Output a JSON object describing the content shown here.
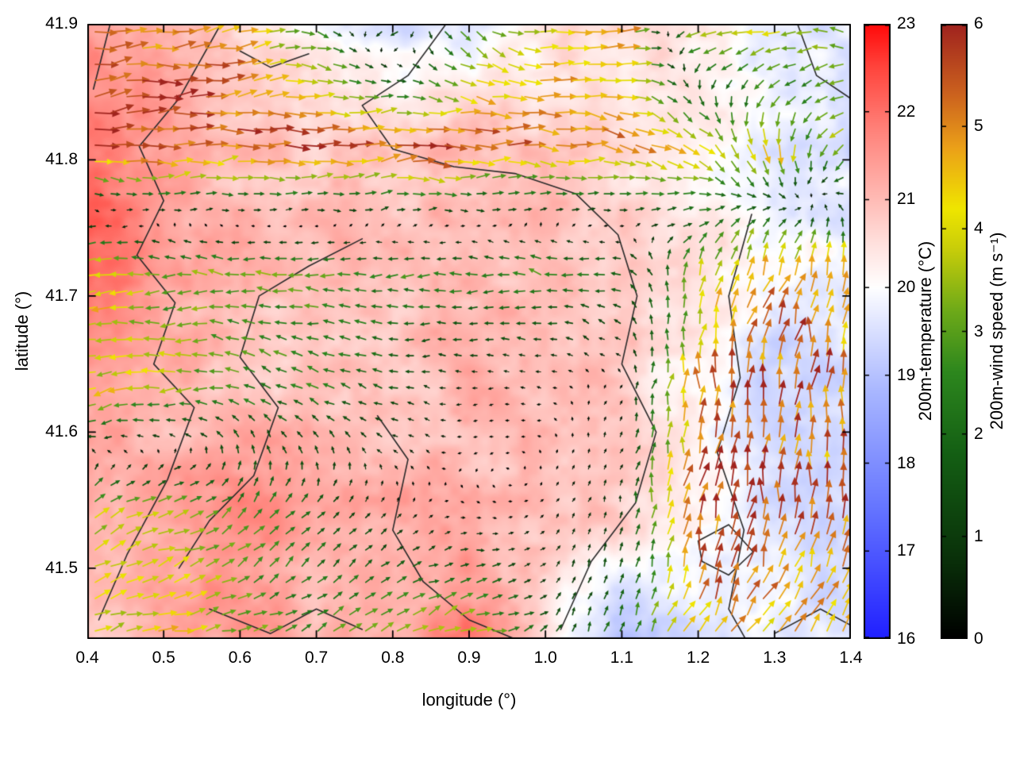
{
  "figure": {
    "background": "#ffffff",
    "text_color": "#000000"
  },
  "chart_data": {
    "type": "heatmap",
    "subtype": "temperature-field-with-wind-vectors",
    "title": "",
    "xlabel": "longitude (°)",
    "ylabel": "latitude (°)",
    "xlim": [
      0.4,
      1.4
    ],
    "ylim": [
      41.448,
      41.9
    ],
    "xticks": [
      "0.4",
      "0.5",
      "0.6",
      "0.7",
      "0.8",
      "0.9",
      "1.0",
      "1.1",
      "1.2",
      "1.3",
      "1.4"
    ],
    "yticks": [
      "41.5",
      "41.6",
      "41.7",
      "41.8",
      "41.9"
    ],
    "grid": false,
    "legend": "none",
    "contour_color": "#2a2a2a",
    "colorbars": [
      {
        "id": "temperature",
        "label": "200m-temperature (°C)",
        "min": 16,
        "max": 23,
        "ticks": [
          "16",
          "17",
          "18",
          "19",
          "20",
          "21",
          "22",
          "23"
        ],
        "stops": [
          [
            16.0,
            "#2020ff"
          ],
          [
            17.5,
            "#6676ff"
          ],
          [
            18.8,
            "#a8b6ff"
          ],
          [
            19.6,
            "#e1e6ff"
          ],
          [
            20.0,
            "#ffffff"
          ],
          [
            20.5,
            "#ffe1de"
          ],
          [
            21.0,
            "#ffbcb6"
          ],
          [
            21.8,
            "#ff827a"
          ],
          [
            22.5,
            "#ff463e"
          ],
          [
            23.0,
            "#ff0a0a"
          ]
        ]
      },
      {
        "id": "wind_speed",
        "label": "200m-wind speed (m s⁻¹)",
        "min": 0,
        "max": 6,
        "ticks": [
          "0",
          "1",
          "2",
          "3",
          "4",
          "5",
          "6"
        ],
        "stops": [
          [
            0.0,
            "#000000"
          ],
          [
            0.8,
            "#0a320a"
          ],
          [
            1.8,
            "#145f14"
          ],
          [
            2.6,
            "#2d871e"
          ],
          [
            3.2,
            "#6eaa19"
          ],
          [
            3.8,
            "#c8cd0a"
          ],
          [
            4.2,
            "#f0e600"
          ],
          [
            4.8,
            "#eba019"
          ],
          [
            5.3,
            "#cd641e"
          ],
          [
            6.0,
            "#a0231e"
          ]
        ]
      }
    ],
    "temperature_field": {
      "units": "degC",
      "x": [
        0.4,
        0.5,
        0.6,
        0.7,
        0.8,
        0.9,
        1.0,
        1.1,
        1.2,
        1.3,
        1.4
      ],
      "y": [
        41.9,
        41.81,
        41.72,
        41.63,
        41.54,
        41.45
      ],
      "values_c": [
        [
          21.5,
          21.0,
          20.5,
          20.0,
          19.5,
          19.6,
          20.3,
          20.6,
          20.3,
          19.8,
          19.6
        ],
        [
          22.0,
          21.5,
          21.0,
          20.8,
          20.8,
          21.0,
          20.8,
          20.5,
          20.2,
          19.7,
          19.5
        ],
        [
          22.3,
          21.3,
          21.0,
          21.0,
          21.0,
          21.0,
          21.0,
          20.8,
          20.5,
          20.1,
          19.8
        ],
        [
          21.5,
          21.0,
          20.8,
          21.0,
          20.8,
          21.2,
          21.0,
          20.8,
          20.0,
          19.2,
          19.5
        ],
        [
          21.0,
          21.3,
          21.8,
          21.2,
          21.3,
          21.0,
          21.0,
          20.8,
          20.3,
          19.5,
          19.3
        ],
        [
          20.8,
          21.2,
          21.5,
          21.0,
          21.2,
          21.8,
          20.5,
          18.8,
          19.5,
          19.8,
          19.5
        ]
      ]
    },
    "wind_field": {
      "units": "m/s",
      "x": [
        0.4,
        0.5,
        0.6,
        0.7,
        0.8,
        0.9,
        1.0,
        1.1,
        1.2,
        1.3,
        1.4
      ],
      "y": [
        41.9,
        41.81,
        41.72,
        41.63,
        41.54,
        41.45
      ],
      "u_ms": [
        [
          5.0,
          5.0,
          4.0,
          2.0,
          -2.0,
          2.0,
          4.0,
          4.5,
          -3.5,
          -4.0,
          -3.0
        ],
        [
          5.5,
          5.5,
          5.5,
          5.5,
          5.5,
          5.5,
          5.0,
          4.5,
          3.5,
          1.0,
          -3.0
        ],
        [
          -4.5,
          -3.0,
          -3.0,
          -3.0,
          -2.5,
          -2.5,
          -2.5,
          -2.0,
          1.0,
          2.0,
          1.0
        ],
        [
          -4.0,
          -3.5,
          -2.5,
          -2.0,
          -1.5,
          -0.5,
          -0.3,
          0.2,
          0.5,
          0.5,
          0.0
        ],
        [
          3.0,
          3.5,
          2.0,
          1.0,
          0.4,
          0.2,
          0.2,
          0.3,
          1.0,
          0.5,
          0.0
        ],
        [
          3.5,
          4.0,
          3.0,
          2.0,
          2.5,
          4.0,
          1.0,
          0.5,
          2.0,
          3.0,
          2.0
        ]
      ],
      "v_ms": [
        [
          0.5,
          0.0,
          1.0,
          -1.0,
          -0.5,
          -2.0,
          0.0,
          0.5,
          -1.0,
          -0.5,
          1.0
        ],
        [
          0.0,
          0.5,
          0.0,
          0.0,
          0.5,
          0.0,
          0.0,
          -1.0,
          -2.5,
          -4.0,
          -2.0
        ],
        [
          -0.5,
          0.0,
          0.0,
          0.0,
          0.0,
          0.0,
          0.5,
          0.5,
          3.0,
          4.5,
          4.0
        ],
        [
          -1.0,
          -0.5,
          1.0,
          1.0,
          0.5,
          0.0,
          0.0,
          0.3,
          5.0,
          5.5,
          5.0
        ],
        [
          2.0,
          1.0,
          2.0,
          1.5,
          0.4,
          -0.2,
          0.2,
          1.0,
          5.5,
          5.5,
          5.0
        ],
        [
          1.5,
          1.0,
          1.0,
          1.5,
          2.0,
          1.0,
          1.0,
          2.0,
          4.0,
          3.5,
          4.0
        ]
      ]
    },
    "contour_lines": [
      [
        [
          0.575,
          41.9
        ],
        [
          0.52,
          41.845
        ],
        [
          0.468,
          41.81
        ],
        [
          0.5,
          41.77
        ],
        [
          0.465,
          41.73
        ],
        [
          0.515,
          41.695
        ],
        [
          0.487,
          41.65
        ],
        [
          0.54,
          41.618
        ],
        [
          0.505,
          41.565
        ],
        [
          0.452,
          41.51
        ],
        [
          0.415,
          41.462
        ]
      ],
      [
        [
          0.87,
          41.9
        ],
        [
          0.82,
          41.862
        ],
        [
          0.76,
          41.84
        ],
        [
          0.8,
          41.808
        ],
        [
          0.88,
          41.795
        ],
        [
          0.96,
          41.79
        ],
        [
          1.04,
          41.775
        ],
        [
          1.095,
          41.745
        ],
        [
          1.12,
          41.7
        ],
        [
          1.1,
          41.65
        ],
        [
          1.145,
          41.6
        ],
        [
          1.118,
          41.548
        ],
        [
          1.06,
          41.505
        ],
        [
          1.02,
          41.455
        ]
      ],
      [
        [
          0.76,
          41.742
        ],
        [
          0.69,
          41.722
        ],
        [
          0.625,
          41.7
        ],
        [
          0.6,
          41.655
        ],
        [
          0.65,
          41.618
        ],
        [
          0.618,
          41.568
        ],
        [
          0.56,
          41.535
        ],
        [
          0.52,
          41.5
        ]
      ],
      [
        [
          0.43,
          41.9
        ],
        [
          0.408,
          41.852
        ]
      ],
      [
        [
          1.27,
          41.76
        ],
        [
          1.24,
          41.7
        ],
        [
          1.255,
          41.64
        ],
        [
          1.225,
          41.585
        ],
        [
          1.26,
          41.528
        ],
        [
          1.24,
          41.47
        ],
        [
          1.27,
          41.44
        ]
      ],
      [
        [
          0.78,
          41.612
        ],
        [
          0.82,
          41.58
        ],
        [
          0.8,
          41.528
        ],
        [
          0.84,
          41.49
        ],
        [
          0.9,
          41.462
        ],
        [
          0.96,
          41.448
        ]
      ],
      [
        [
          0.56,
          41.47
        ],
        [
          0.64,
          41.452
        ],
        [
          0.7,
          41.47
        ],
        [
          0.76,
          41.455
        ]
      ],
      [
        [
          1.2,
          41.52
        ],
        [
          1.24,
          41.532
        ],
        [
          1.272,
          41.512
        ],
        [
          1.24,
          41.495
        ],
        [
          1.205,
          41.505
        ],
        [
          1.2,
          41.52
        ]
      ],
      [
        [
          1.3,
          41.452
        ],
        [
          1.36,
          41.47
        ],
        [
          1.4,
          41.458
        ]
      ],
      [
        [
          0.6,
          41.88
        ],
        [
          0.64,
          41.868
        ],
        [
          0.69,
          41.878
        ]
      ],
      [
        [
          1.33,
          41.9
        ],
        [
          1.355,
          41.862
        ],
        [
          1.4,
          41.845
        ]
      ]
    ]
  }
}
